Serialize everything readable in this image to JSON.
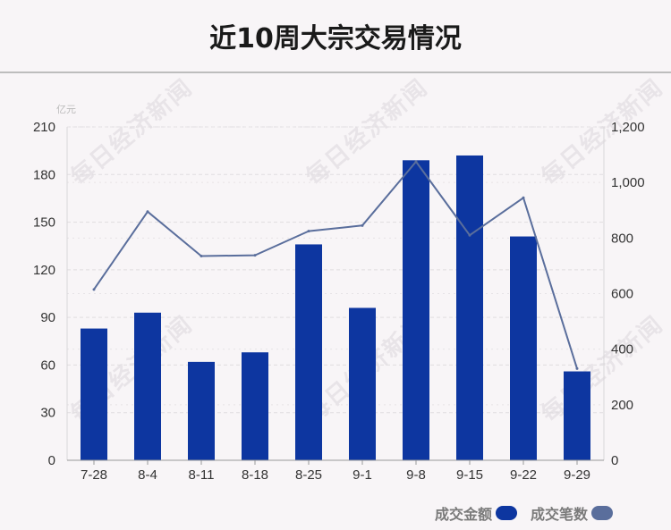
{
  "title": "近10周大宗交易情况",
  "watermark": "每日经济新闻",
  "chart_data": {
    "type": "bar+line",
    "categories": [
      "7-28",
      "8-4",
      "8-11",
      "8-18",
      "8-25",
      "9-1",
      "9-8",
      "9-15",
      "9-22",
      "9-29"
    ],
    "left_axis": {
      "unit": "亿元",
      "ylim": [
        0,
        210
      ],
      "ticks": [
        "0",
        "30",
        "60",
        "90",
        "120",
        "150",
        "180",
        "210"
      ]
    },
    "right_axis": {
      "ylim": [
        0,
        1200
      ],
      "ticks": [
        "0",
        "200",
        "400",
        "600",
        "800",
        "1,000",
        "1,200"
      ]
    },
    "series": [
      {
        "name": "成交金额",
        "type": "bar",
        "axis": "left",
        "color": "#0d36a0",
        "values": [
          83,
          93,
          62,
          68,
          136,
          96,
          189,
          192,
          141,
          56
        ]
      },
      {
        "name": "成交笔数",
        "type": "line",
        "axis": "right",
        "color": "#5a6e9c",
        "values": [
          615,
          895,
          735,
          738,
          825,
          845,
          1075,
          810,
          945,
          330
        ]
      }
    ],
    "grid": true,
    "legend_position": "bottom-right"
  }
}
